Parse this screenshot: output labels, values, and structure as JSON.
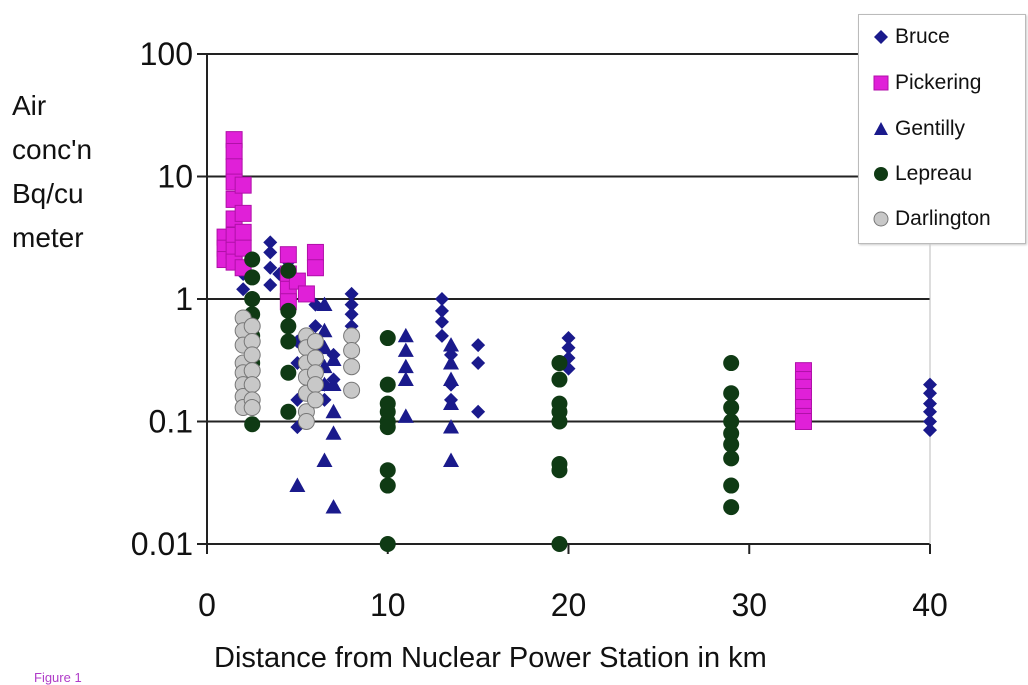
{
  "chart_data": {
    "type": "scatter",
    "y_axis_label": "Air\nconc'n\nBq/cu\nmeter",
    "xlabel": "Distance from Nuclear Power Station in km",
    "caption": "Figure 1",
    "xlim": [
      0,
      40
    ],
    "ylim": [
      0.01,
      100
    ],
    "yscale": "log",
    "x_ticks": [
      "0",
      "10",
      "20",
      "30",
      "40"
    ],
    "y_ticks": [
      "0.01",
      "0.1",
      "1",
      "10",
      "100"
    ],
    "grid": "horizontal",
    "legend_position": "top-right",
    "series": [
      {
        "name": "Bruce",
        "marker": "diamond",
        "color": "#1a1a8c",
        "points": [
          [
            2,
            1.2
          ],
          [
            2,
            1.6
          ],
          [
            2.5,
            1.5
          ],
          [
            3.5,
            2.9
          ],
          [
            3.5,
            2.4
          ],
          [
            3.5,
            1.8
          ],
          [
            3.5,
            1.3
          ],
          [
            4,
            1.6
          ],
          [
            4.5,
            2.0
          ],
          [
            5,
            0.45
          ],
          [
            5,
            0.3
          ],
          [
            5,
            0.15
          ],
          [
            5,
            0.09
          ],
          [
            6,
            0.9
          ],
          [
            6,
            0.6
          ],
          [
            6,
            0.4
          ],
          [
            6,
            0.25
          ],
          [
            6.5,
            0.2
          ],
          [
            6.5,
            0.15
          ],
          [
            7,
            0.35
          ],
          [
            7,
            0.22
          ],
          [
            8,
            1.1
          ],
          [
            8,
            0.9
          ],
          [
            8,
            0.75
          ],
          [
            8,
            0.6
          ],
          [
            13,
            1.0
          ],
          [
            13,
            0.8
          ],
          [
            13,
            0.65
          ],
          [
            13,
            0.5
          ],
          [
            13.5,
            0.35
          ],
          [
            13.5,
            0.2
          ],
          [
            13.5,
            0.15
          ],
          [
            15,
            0.42
          ],
          [
            15,
            0.3
          ],
          [
            15,
            0.12
          ],
          [
            20,
            0.48
          ],
          [
            20,
            0.4
          ],
          [
            20,
            0.33
          ],
          [
            20,
            0.27
          ],
          [
            40,
            0.2
          ],
          [
            40,
            0.17
          ],
          [
            40,
            0.14
          ],
          [
            40,
            0.12
          ],
          [
            40,
            0.1
          ],
          [
            40,
            0.085
          ]
        ]
      },
      {
        "name": "Pickering",
        "marker": "square",
        "color": "#e020d8",
        "points": [
          [
            1,
            3.2
          ],
          [
            1,
            2.6
          ],
          [
            1,
            2.1
          ],
          [
            1.5,
            20
          ],
          [
            1.5,
            16
          ],
          [
            1.5,
            12
          ],
          [
            1.5,
            9
          ],
          [
            1.5,
            6.5
          ],
          [
            1.5,
            4.5
          ],
          [
            1.5,
            3.3
          ],
          [
            1.5,
            2.5
          ],
          [
            1.5,
            2
          ],
          [
            2,
            8.5
          ],
          [
            2,
            5
          ],
          [
            2,
            3.5
          ],
          [
            2,
            2.6
          ],
          [
            2,
            1.8
          ],
          [
            4.5,
            2.3
          ],
          [
            4.5,
            1.6
          ],
          [
            4.5,
            1.2
          ],
          [
            4.5,
            0.95
          ],
          [
            5,
            1.4
          ],
          [
            5.5,
            1.1
          ],
          [
            6,
            2.4
          ],
          [
            6,
            1.8
          ],
          [
            33,
            0.26
          ],
          [
            33,
            0.22
          ],
          [
            33,
            0.19
          ],
          [
            33,
            0.16
          ],
          [
            33,
            0.13
          ],
          [
            33,
            0.11
          ],
          [
            33,
            0.1
          ]
        ]
      },
      {
        "name": "Gentilly",
        "marker": "triangle",
        "color": "#1a1a8c",
        "points": [
          [
            5,
            0.03
          ],
          [
            6.5,
            0.9
          ],
          [
            6.5,
            0.55
          ],
          [
            6.5,
            0.4
          ],
          [
            6.5,
            0.28
          ],
          [
            6.5,
            0.2
          ],
          [
            6.5,
            0.048
          ],
          [
            7,
            0.32
          ],
          [
            7,
            0.2
          ],
          [
            7,
            0.12
          ],
          [
            7,
            0.08
          ],
          [
            7,
            0.02
          ],
          [
            11,
            0.5
          ],
          [
            11,
            0.38
          ],
          [
            11,
            0.28
          ],
          [
            11,
            0.22
          ],
          [
            11,
            0.11
          ],
          [
            13.5,
            0.42
          ],
          [
            13.5,
            0.3
          ],
          [
            13.5,
            0.22
          ],
          [
            13.5,
            0.14
          ],
          [
            13.5,
            0.09
          ],
          [
            13.5,
            0.048
          ]
        ]
      },
      {
        "name": "Lepreau",
        "marker": "circle",
        "color": "#0f3a14",
        "points": [
          [
            2.5,
            2.1
          ],
          [
            2.5,
            1.5
          ],
          [
            2.5,
            1.0
          ],
          [
            2.5,
            0.75
          ],
          [
            2.5,
            0.5
          ],
          [
            2.5,
            0.3
          ],
          [
            2.5,
            0.2
          ],
          [
            2.5,
            0.095
          ],
          [
            4.5,
            1.7
          ],
          [
            4.5,
            0.8
          ],
          [
            4.5,
            0.6
          ],
          [
            4.5,
            0.45
          ],
          [
            4.5,
            0.25
          ],
          [
            4.5,
            0.12
          ],
          [
            10,
            0.48
          ],
          [
            10,
            0.2
          ],
          [
            10,
            0.14
          ],
          [
            10,
            0.12
          ],
          [
            10,
            0.1
          ],
          [
            10,
            0.09
          ],
          [
            10,
            0.04
          ],
          [
            10,
            0.03
          ],
          [
            10,
            0.01
          ],
          [
            19.5,
            0.3
          ],
          [
            19.5,
            0.22
          ],
          [
            19.5,
            0.14
          ],
          [
            19.5,
            0.12
          ],
          [
            19.5,
            0.1
          ],
          [
            19.5,
            0.045
          ],
          [
            19.5,
            0.04
          ],
          [
            19.5,
            0.01
          ],
          [
            29,
            0.3
          ],
          [
            29,
            0.17
          ],
          [
            29,
            0.13
          ],
          [
            29,
            0.1
          ],
          [
            29,
            0.08
          ],
          [
            29,
            0.065
          ],
          [
            29,
            0.05
          ],
          [
            29,
            0.03
          ],
          [
            29,
            0.02
          ]
        ]
      },
      {
        "name": "Darlington",
        "marker": "circle",
        "color": "#c8c8c8",
        "points": [
          [
            2,
            0.7
          ],
          [
            2,
            0.55
          ],
          [
            2,
            0.42
          ],
          [
            2,
            0.3
          ],
          [
            2,
            0.25
          ],
          [
            2,
            0.2
          ],
          [
            2,
            0.16
          ],
          [
            2,
            0.13
          ],
          [
            2.5,
            0.6
          ],
          [
            2.5,
            0.45
          ],
          [
            2.5,
            0.35
          ],
          [
            2.5,
            0.26
          ],
          [
            2.5,
            0.2
          ],
          [
            2.5,
            0.15
          ],
          [
            2.5,
            0.13
          ],
          [
            5.5,
            0.5
          ],
          [
            5.5,
            0.4
          ],
          [
            5.5,
            0.3
          ],
          [
            5.5,
            0.23
          ],
          [
            5.5,
            0.17
          ],
          [
            5.5,
            0.12
          ],
          [
            5.5,
            0.1
          ],
          [
            6,
            0.45
          ],
          [
            6,
            0.33
          ],
          [
            6,
            0.25
          ],
          [
            6,
            0.2
          ],
          [
            6,
            0.15
          ],
          [
            8,
            0.5
          ],
          [
            8,
            0.38
          ],
          [
            8,
            0.28
          ],
          [
            8,
            0.18
          ]
        ]
      }
    ]
  }
}
